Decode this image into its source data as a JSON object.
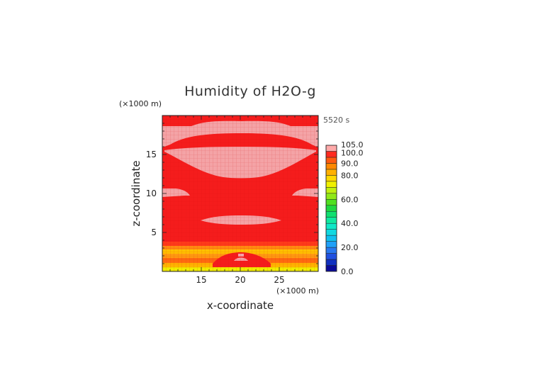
{
  "chart_data": {
    "type": "heatmap",
    "title": "Humidity of H2O-g",
    "time_label": "5520 s",
    "xlabel": "x-coordinate",
    "ylabel": "z-coordinate",
    "x_unit": "(×1000 m)",
    "y_unit": "(×1000 m)",
    "xlim": [
      10,
      30
    ],
    "ylim": [
      0,
      20
    ],
    "x_ticks": [
      "15",
      "20",
      "25"
    ],
    "y_ticks": [
      "5",
      "10",
      "15"
    ],
    "x_tick_values": [
      15,
      20,
      25
    ],
    "y_tick_values": [
      5,
      10,
      15
    ],
    "background_value": 100,
    "features": [
      {
        "region": "lower band",
        "value": 80,
        "z_range": [
          0,
          3.8
        ]
      },
      {
        "region": "upper light band",
        "value": 103,
        "z_range": [
          16.5,
          19.3
        ]
      },
      {
        "region": "bowl below top band",
        "value": 103,
        "z_range": [
          12.3,
          16.5
        ]
      },
      {
        "region": "lens near z=6.5",
        "value": 103,
        "z_range": [
          6.3,
          7.0
        ]
      },
      {
        "region": "left & right edges near z=10",
        "value": 103,
        "z_range": [
          9.8,
          10.6
        ]
      }
    ],
    "colorbar": {
      "ticks": [
        "105.0",
        "100.0",
        "90.0",
        "80.0",
        "60.0",
        "40.0",
        "20.0",
        "0.0"
      ],
      "tick_values": [
        105,
        100,
        90,
        80,
        60,
        40,
        20,
        0
      ],
      "levels": [
        {
          "v": 0,
          "color": "#0a0a99"
        },
        {
          "v": 5,
          "color": "#1030c0"
        },
        {
          "v": 10,
          "color": "#2050e0"
        },
        {
          "v": 15,
          "color": "#2878f0"
        },
        {
          "v": 20,
          "color": "#20a0f8"
        },
        {
          "v": 25,
          "color": "#10c0f0"
        },
        {
          "v": 30,
          "color": "#10d8e0"
        },
        {
          "v": 35,
          "color": "#10e8c8"
        },
        {
          "v": 40,
          "color": "#10e8a0"
        },
        {
          "v": 45,
          "color": "#10e070"
        },
        {
          "v": 50,
          "color": "#20d840"
        },
        {
          "v": 55,
          "color": "#50e020"
        },
        {
          "v": 60,
          "color": "#90e818"
        },
        {
          "v": 65,
          "color": "#c0f010"
        },
        {
          "v": 70,
          "color": "#f0f000"
        },
        {
          "v": 75,
          "color": "#ffd800"
        },
        {
          "v": 80,
          "color": "#ffb000"
        },
        {
          "v": 85,
          "color": "#ff8800"
        },
        {
          "v": 90,
          "color": "#ff5a10"
        },
        {
          "v": 95,
          "color": "#ff2a20"
        },
        {
          "v": 100,
          "color": "#ffaaaa"
        },
        {
          "v": 105,
          "color": "#ffffff"
        }
      ]
    }
  },
  "colors": {
    "field_red": "#f51c1c",
    "field_pink": "#f4a3a6",
    "grid_line": "#d81010"
  }
}
